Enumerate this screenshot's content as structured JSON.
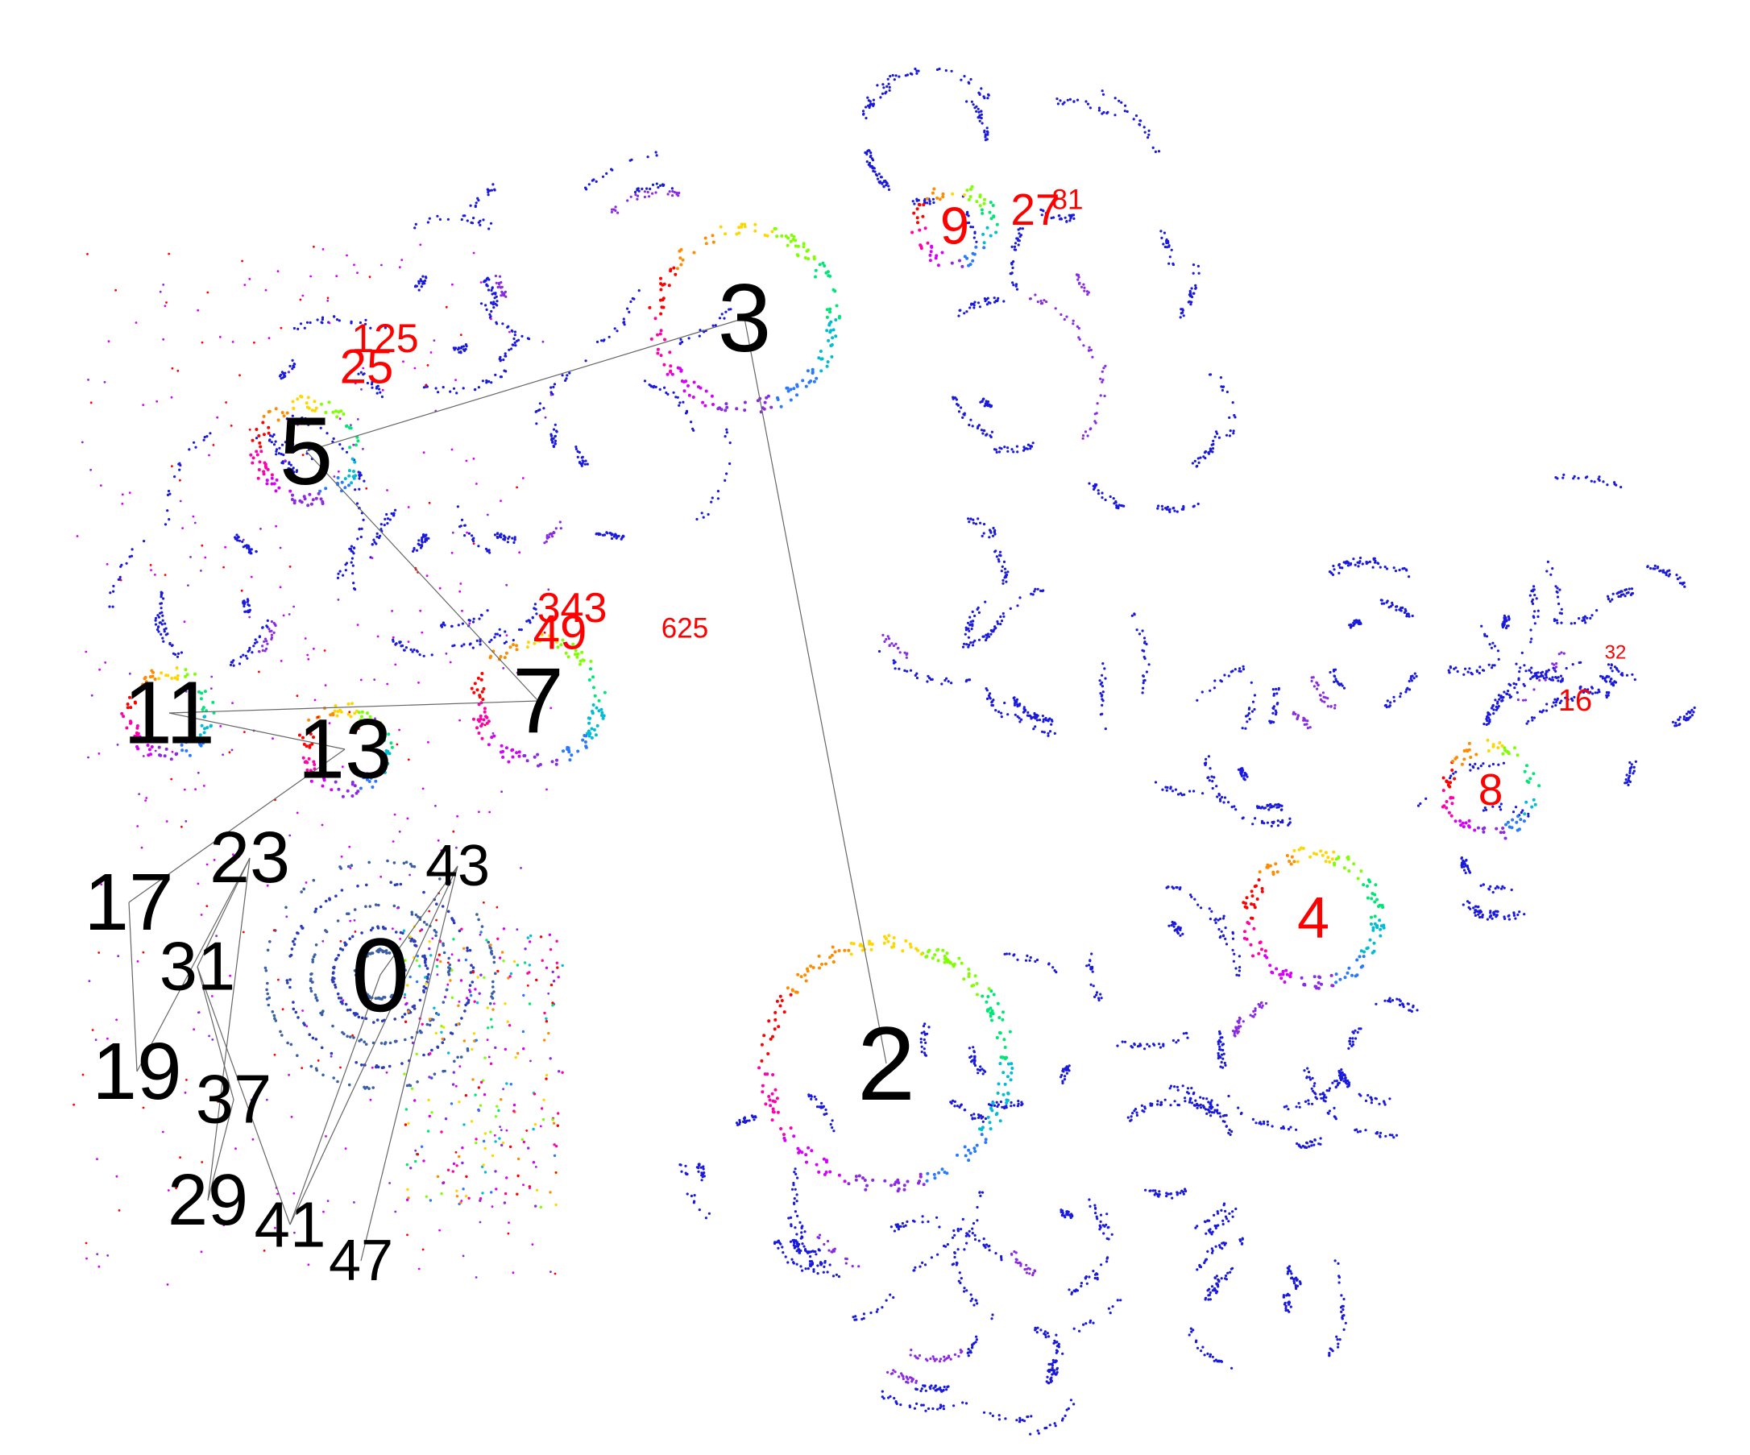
{
  "colors": {
    "background": "#ffffff",
    "black_label": "#000000",
    "red_label": "#ff0000",
    "edge": "#666666",
    "dot_primary": "#1a1adc",
    "dot_palette": [
      "#ff0000",
      "#ff8c00",
      "#ffd700",
      "#7fff00",
      "#00e676",
      "#00bcd4",
      "#2979ff",
      "#8a2be2",
      "#d500f9",
      "#ff00aa"
    ]
  },
  "nodes_black": [
    {
      "id": "n0",
      "label": "0"
    },
    {
      "id": "n2",
      "label": "2"
    },
    {
      "id": "n3",
      "label": "3"
    },
    {
      "id": "n5",
      "label": "5"
    },
    {
      "id": "n7",
      "label": "7"
    },
    {
      "id": "n11",
      "label": "11"
    },
    {
      "id": "n13",
      "label": "13"
    },
    {
      "id": "n17",
      "label": "17"
    },
    {
      "id": "n19",
      "label": "19"
    },
    {
      "id": "n23",
      "label": "23"
    },
    {
      "id": "n29",
      "label": "29"
    },
    {
      "id": "n31",
      "label": "31"
    },
    {
      "id": "n37",
      "label": "37"
    },
    {
      "id": "n41",
      "label": "41"
    },
    {
      "id": "n43",
      "label": "43"
    },
    {
      "id": "n47",
      "label": "47"
    }
  ],
  "nodes_red": [
    {
      "id": "r4",
      "label": "4"
    },
    {
      "id": "r8",
      "label": "8"
    },
    {
      "id": "r9",
      "label": "9"
    },
    {
      "id": "r16",
      "label": "16"
    },
    {
      "id": "r25",
      "label": "25"
    },
    {
      "id": "r27",
      "label": "27"
    },
    {
      "id": "r32",
      "label": "32"
    },
    {
      "id": "r49",
      "label": "49"
    },
    {
      "id": "r81",
      "label": "81"
    },
    {
      "id": "r125",
      "label": "125"
    },
    {
      "id": "r343",
      "label": "343"
    },
    {
      "id": "r625",
      "label": "625"
    }
  ],
  "edges": [
    [
      "n3",
      "n5"
    ],
    [
      "n3",
      "n2"
    ],
    [
      "n5",
      "n7"
    ],
    [
      "n7",
      "n11"
    ],
    [
      "n11",
      "n13"
    ],
    [
      "n13",
      "n17"
    ],
    [
      "n17",
      "n19"
    ],
    [
      "n19",
      "n23"
    ],
    [
      "n23",
      "n29"
    ],
    [
      "n23",
      "n31"
    ],
    [
      "n31",
      "n37"
    ],
    [
      "n31",
      "n41"
    ],
    [
      "n29",
      "n37"
    ],
    [
      "n43",
      "n41"
    ],
    [
      "n43",
      "n47"
    ],
    [
      "n0",
      "n43"
    ],
    [
      "n0",
      "n41"
    ]
  ]
}
